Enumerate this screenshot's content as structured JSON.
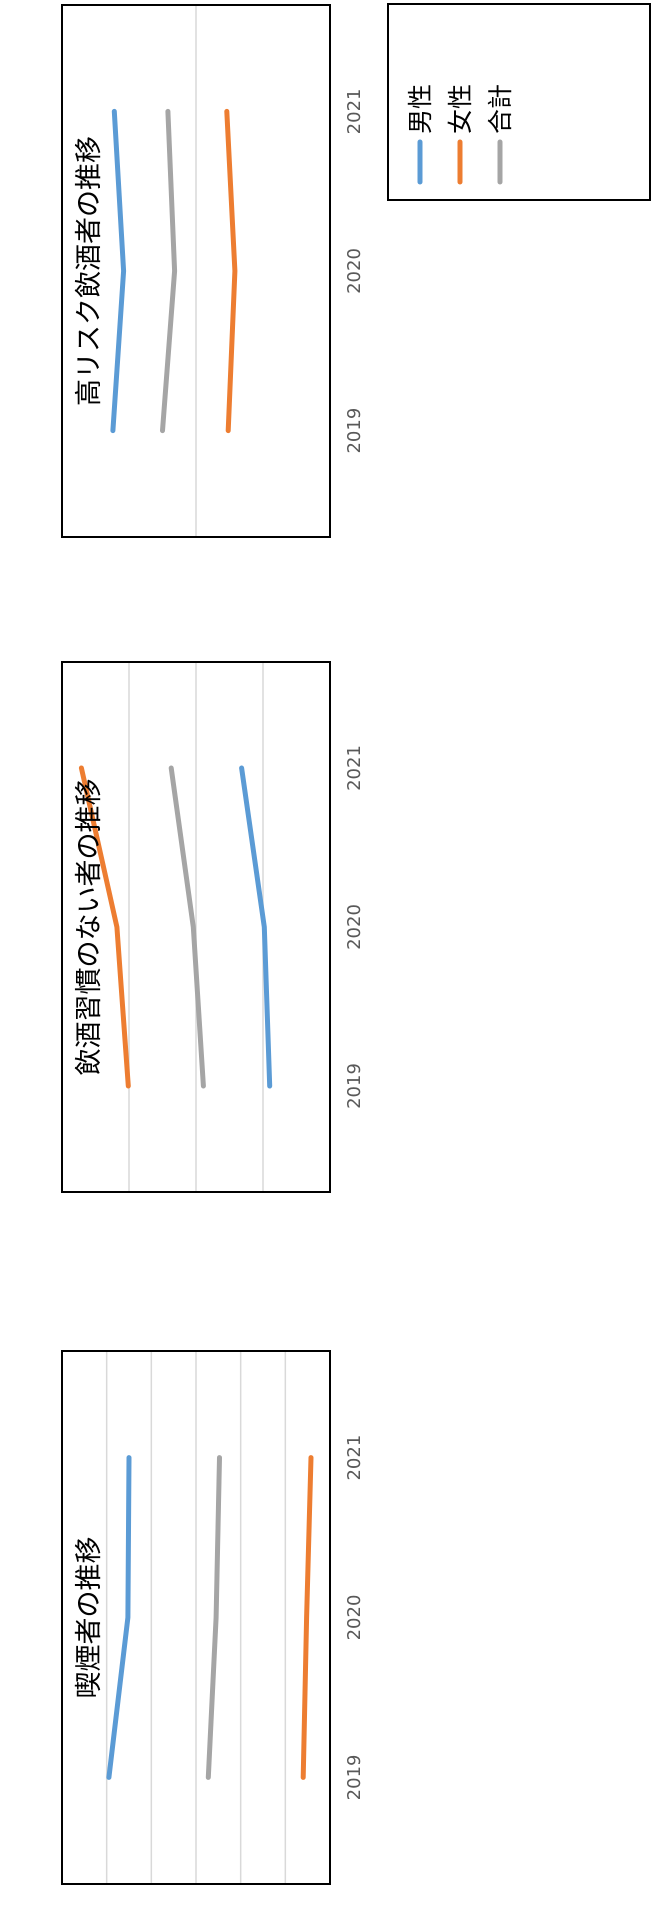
{
  "chart_data": [
    {
      "type": "line",
      "title": "喫煙者の推移",
      "unit": "%",
      "categories": [
        "2019",
        "2020",
        "2021"
      ],
      "yticks": [
        "8.0",
        "12.0",
        "16.0",
        "20.0",
        "24.0",
        "28.0",
        "32.0"
      ],
      "ylim": [
        8,
        32
      ],
      "grid": true,
      "series": [
        {
          "name": "男性",
          "values": [
            27.8,
            26.1,
            26.0
          ]
        },
        {
          "name": "女性",
          "values": [
            10.4,
            10.1,
            9.7
          ]
        },
        {
          "name": "合計",
          "values": [
            18.9,
            18.2,
            17.9
          ]
        }
      ]
    },
    {
      "type": "line",
      "title": "飲酒習慣のない者の推移",
      "unit": "%",
      "categories": [
        "2019",
        "2020",
        "2021"
      ],
      "yticks": [
        "20.0",
        "30.0",
        "40.0",
        "50.0",
        "60.0"
      ],
      "ylim": [
        20,
        60
      ],
      "grid": true,
      "series": [
        {
          "name": "男性",
          "values": [
            29.0,
            29.8,
            33.2
          ]
        },
        {
          "name": "女性",
          "values": [
            50.1,
            51.8,
            57.1
          ]
        },
        {
          "name": "合計",
          "values": [
            38.9,
            40.4,
            43.7
          ]
        }
      ]
    },
    {
      "type": "line",
      "title": "高リスク飲酒者の推移",
      "unit": "%",
      "categories": [
        "2019",
        "2020",
        "2021"
      ],
      "yticks": [
        "5.0",
        "15.0",
        "25.0"
      ],
      "ylim": [
        5,
        25
      ],
      "grid": true,
      "series": [
        {
          "name": "男性",
          "values": [
            21.2,
            20.4,
            21.1
          ]
        },
        {
          "name": "女性",
          "values": [
            12.6,
            12.1,
            12.7
          ]
        },
        {
          "name": "合計",
          "values": [
            17.5,
            16.6,
            17.1
          ]
        }
      ]
    }
  ],
  "legend": [
    {
      "name": "男性",
      "color": "#5B9BD5"
    },
    {
      "name": "女性",
      "color": "#ED7D31"
    },
    {
      "name": "合計",
      "color": "#A5A5A5"
    }
  ],
  "colors": [
    "#5B9BD5",
    "#ED7D31",
    "#A5A5A5"
  ]
}
